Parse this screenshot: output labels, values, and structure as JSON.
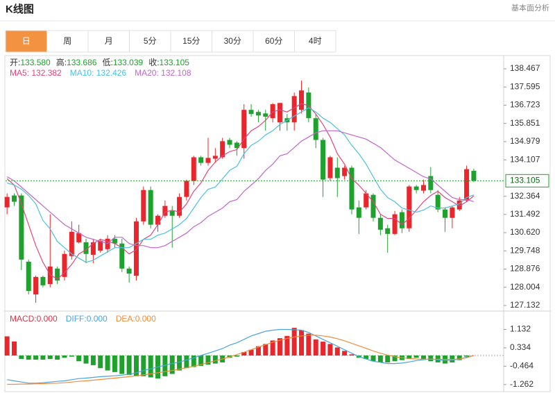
{
  "header": {
    "title": "K线图",
    "link": "基本面分析"
  },
  "tabs": [
    "日",
    "周",
    "月",
    "5分",
    "15分",
    "30分",
    "60分",
    "4时"
  ],
  "active_tab": 0,
  "chart_data": [
    {
      "type": "candlestick",
      "info": [
        {
          "label": "开:",
          "value": "133.580"
        },
        {
          "label": "高:",
          "value": "133.686"
        },
        {
          "label": "低:",
          "value": "133.039"
        },
        {
          "label": "收:",
          "value": "133.105"
        }
      ],
      "up_color": "#e8262b",
      "down_color": "#1fa12e",
      "ylim": [
        126.865,
        138.901
      ],
      "yticks": [
        138.467,
        137.595,
        136.723,
        135.851,
        134.979,
        134.107,
        132.364,
        131.492,
        {
          "value": 130.62,
          "label": "130.620"
        },
        129.748,
        128.876,
        128.004,
        127.132
      ],
      "last_price": 133.105,
      "candles": {
        "open": [
          131.83,
          132.4,
          132.4,
          129.23,
          127.66,
          128.5,
          128.16,
          128.9,
          128.5,
          129.5,
          130.16,
          130.16,
          129.56,
          129.76,
          129.83,
          130.33,
          130.1,
          128.9,
          128.56,
          131.16,
          132.66,
          131.0,
          131.43,
          131.66,
          131.43,
          132.33,
          133.1,
          134.23,
          133.96,
          134.16,
          134.23,
          135.06,
          134.93,
          134.67,
          136.5,
          136.4,
          136.33,
          136.1,
          135.9,
          136.1,
          135.9,
          136.5,
          137.33,
          136.1,
          135.06,
          133.23,
          133.73,
          133.33,
          133.73,
          131.83,
          131.83,
          132.43,
          131.33,
          130.83,
          130.56,
          131.6,
          130.83,
          132.83,
          132.63,
          133.33,
          132.43,
          131.73,
          131.33,
          131.73,
          132.16,
          133.58
        ],
        "high": [
          132.5,
          132.5,
          132.5,
          129.33,
          128.56,
          128.56,
          131.5,
          129.0,
          129.76,
          131.16,
          131.0,
          130.33,
          130.33,
          130.33,
          130.5,
          130.5,
          130.33,
          129.0,
          131.33,
          132.83,
          132.83,
          131.5,
          132.16,
          131.9,
          132.5,
          133.16,
          134.3,
          134.3,
          135.16,
          134.67,
          135.16,
          135.16,
          135.0,
          136.77,
          136.77,
          136.5,
          136.5,
          136.83,
          136.83,
          136.3,
          137.33,
          137.9,
          137.57,
          136.3,
          135.16,
          134.3,
          134.23,
          133.83,
          133.83,
          132.16,
          132.66,
          132.5,
          131.5,
          131.0,
          131.66,
          131.73,
          132.9,
          132.9,
          133.16,
          133.76,
          132.66,
          131.83,
          131.9,
          132.33,
          133.83,
          133.686
        ],
        "low": [
          131.5,
          131.9,
          128.83,
          127.66,
          127.26,
          128.0,
          128.0,
          128.16,
          128.33,
          129.33,
          130.1,
          129.16,
          129.16,
          129.66,
          129.66,
          129.9,
          128.73,
          128.23,
          128.33,
          131.0,
          130.83,
          130.66,
          131.33,
          129.9,
          131.33,
          132.16,
          132.9,
          133.83,
          133.83,
          133.96,
          134.16,
          134.67,
          134.3,
          134.16,
          136.17,
          135.9,
          135.5,
          135.9,
          135.5,
          135.5,
          135.5,
          136.33,
          135.9,
          134.67,
          132.33,
          133.1,
          132.33,
          133.16,
          131.5,
          130.56,
          131.73,
          131.16,
          130.5,
          129.66,
          130.5,
          130.6,
          130.66,
          132.5,
          132.5,
          132.5,
          131.6,
          130.66,
          130.83,
          131.66,
          132.1,
          133.039
        ],
        "close": [
          132.33,
          132.1,
          129.33,
          127.83,
          128.5,
          128.1,
          129.0,
          128.33,
          129.6,
          130.66,
          130.6,
          129.6,
          130.16,
          130.23,
          130.33,
          130.1,
          128.9,
          128.66,
          131.16,
          132.66,
          131.0,
          131.43,
          131.9,
          131.43,
          132.33,
          133.1,
          134.23,
          133.96,
          134.2,
          134.3,
          135.0,
          134.83,
          134.67,
          136.5,
          136.3,
          136.23,
          136.17,
          136.77,
          136.83,
          135.9,
          137.16,
          137.43,
          136.1,
          135.06,
          133.16,
          134.23,
          133.23,
          133.73,
          131.73,
          131.33,
          132.5,
          131.33,
          130.76,
          130.56,
          131.5,
          130.83,
          132.83,
          132.66,
          132.9,
          132.66,
          131.73,
          131.33,
          131.83,
          132.16,
          133.66,
          133.105
        ]
      },
      "series": [
        {
          "name": "MA5: 132.382",
          "color": "#e0467a",
          "values": [
            133.2,
            132.9,
            132.0,
            131.0,
            130.0,
            129.2,
            128.6,
            128.4,
            128.7,
            129.1,
            129.6,
            129.8,
            130.1,
            130.3,
            130.2,
            130.1,
            129.9,
            129.6,
            129.8,
            130.3,
            130.5,
            131.0,
            131.6,
            131.7,
            131.6,
            132.0,
            132.6,
            133.0,
            133.6,
            134.0,
            134.3,
            134.5,
            134.6,
            135.1,
            135.5,
            135.7,
            136.0,
            136.4,
            136.5,
            136.4,
            136.6,
            136.8,
            136.7,
            136.3,
            135.8,
            135.2,
            134.4,
            133.9,
            133.2,
            132.9,
            132.5,
            132.1,
            131.5,
            131.3,
            131.3,
            131.0,
            131.3,
            131.7,
            132.1,
            132.4,
            132.6,
            132.3,
            132.1,
            131.9,
            132.1,
            132.382
          ]
        },
        {
          "name": "MA10: 132.426",
          "color": "#4cc0e0",
          "values": [
            133.0,
            132.9,
            132.7,
            132.4,
            132.0,
            131.2,
            130.8,
            130.2,
            129.9,
            129.6,
            129.4,
            129.2,
            129.3,
            129.5,
            129.7,
            129.9,
            129.9,
            129.9,
            130.1,
            130.3,
            130.3,
            130.5,
            130.6,
            130.8,
            131.0,
            131.3,
            131.8,
            132.3,
            132.7,
            132.8,
            133.2,
            133.6,
            133.8,
            134.4,
            134.8,
            135.0,
            135.3,
            135.5,
            135.8,
            136.0,
            136.2,
            136.4,
            136.6,
            136.4,
            136.1,
            135.9,
            135.6,
            135.3,
            134.8,
            134.4,
            133.9,
            133.3,
            132.7,
            132.3,
            132.1,
            131.8,
            131.7,
            131.6,
            131.7,
            131.9,
            131.8,
            131.8,
            131.9,
            132.0,
            132.3,
            132.426
          ]
        },
        {
          "name": "MA20: 132.108",
          "color": "#c066cc",
          "values": [
            133.3,
            133.1,
            132.8,
            132.5,
            132.2,
            131.9,
            131.6,
            131.3,
            131.0,
            130.8,
            130.6,
            130.4,
            130.3,
            130.2,
            130.1,
            130.4,
            130.4,
            130.1,
            130.0,
            130.0,
            129.9,
            129.9,
            130.0,
            130.2,
            130.4,
            130.6,
            130.9,
            131.1,
            131.4,
            131.6,
            131.8,
            132.1,
            132.2,
            132.6,
            132.9,
            133.2,
            133.6,
            133.9,
            134.3,
            134.4,
            134.7,
            135.0,
            135.2,
            135.4,
            135.5,
            135.5,
            135.5,
            135.4,
            135.3,
            135.2,
            135.1,
            134.9,
            134.7,
            134.4,
            134.1,
            133.9,
            133.7,
            133.5,
            133.3,
            133.2,
            132.9,
            132.6,
            132.3,
            132.2,
            132.2,
            132.108
          ]
        }
      ]
    },
    {
      "type": "macd",
      "up_color": "#e8262b",
      "down_color": "#1fa12e",
      "ylim": [
        -1.537,
        1.898
      ],
      "yticks": [
        1.132,
        0.334,
        -0.464,
        -1.262
      ],
      "bars": {
        "name": "MACD:0.000",
        "color": "#d8344a",
        "values": [
          0.83,
          0.61,
          -0.15,
          -0.18,
          -0.18,
          -0.18,
          -0.15,
          -0.18,
          -0.1,
          -0.05,
          -0.25,
          -0.35,
          -0.42,
          -0.55,
          -0.65,
          -0.72,
          -0.8,
          -0.85,
          -0.9,
          -0.9,
          -0.95,
          -1.0,
          -0.9,
          -0.8,
          -0.65,
          -0.55,
          -0.5,
          -0.45,
          -0.4,
          -0.35,
          -0.3,
          -0.1,
          -0.05,
          0.15,
          0.25,
          0.4,
          0.5,
          0.65,
          0.75,
          0.85,
          1.2,
          1.1,
          0.95,
          0.7,
          0.6,
          0.5,
          0.35,
          0.2,
          0.05,
          -0.1,
          -0.15,
          -0.25,
          -0.3,
          -0.3,
          -0.25,
          -0.2,
          -0.15,
          -0.1,
          -0.15,
          -0.25,
          -0.3,
          -0.35,
          -0.3,
          -0.2,
          -0.05,
          0
        ]
      },
      "series": [
        {
          "name": "DIFF:0.000",
          "color": "#4aa3df",
          "values": [
            -1.05,
            -1.1,
            -1.15,
            -1.2,
            -1.2,
            -1.18,
            -1.15,
            -1.12,
            -1.1,
            -1.05,
            -1.0,
            -0.98,
            -0.95,
            -0.92,
            -0.9,
            -0.88,
            -0.85,
            -0.82,
            -0.75,
            -0.65,
            -0.58,
            -0.5,
            -0.42,
            -0.35,
            -0.28,
            -0.2,
            -0.1,
            0,
            0.1,
            0.2,
            0.3,
            0.45,
            0.55,
            0.7,
            0.85,
            0.95,
            1.05,
            1.1,
            1.13,
            1.13,
            1.12,
            1.1,
            1.0,
            0.85,
            0.7,
            0.55,
            0.4,
            0.25,
            0.1,
            -0.05,
            -0.15,
            -0.25,
            -0.3,
            -0.35,
            -0.35,
            -0.33,
            -0.28,
            -0.22,
            -0.18,
            -0.15,
            -0.18,
            -0.22,
            -0.2,
            -0.15,
            -0.08,
            0
          ]
        },
        {
          "name": "DEA:0.000",
          "color": "#f08c3c",
          "values": [
            -1.25,
            -1.25,
            -1.24,
            -1.24,
            -1.23,
            -1.22,
            -1.21,
            -1.2,
            -1.18,
            -1.15,
            -1.12,
            -1.1,
            -1.07,
            -1.04,
            -1.01,
            -0.98,
            -0.95,
            -0.92,
            -0.88,
            -0.84,
            -0.8,
            -0.75,
            -0.7,
            -0.65,
            -0.59,
            -0.53,
            -0.46,
            -0.39,
            -0.31,
            -0.23,
            -0.15,
            -0.06,
            0.04,
            0.14,
            0.25,
            0.36,
            0.47,
            0.57,
            0.66,
            0.74,
            0.8,
            0.85,
            0.88,
            0.88,
            0.85,
            0.8,
            0.73,
            0.64,
            0.53,
            0.42,
            0.31,
            0.2,
            0.1,
            0.02,
            -0.05,
            -0.1,
            -0.13,
            -0.15,
            -0.16,
            -0.16,
            -0.16,
            -0.17,
            -0.17,
            -0.15,
            -0.1,
            0
          ]
        }
      ]
    }
  ]
}
